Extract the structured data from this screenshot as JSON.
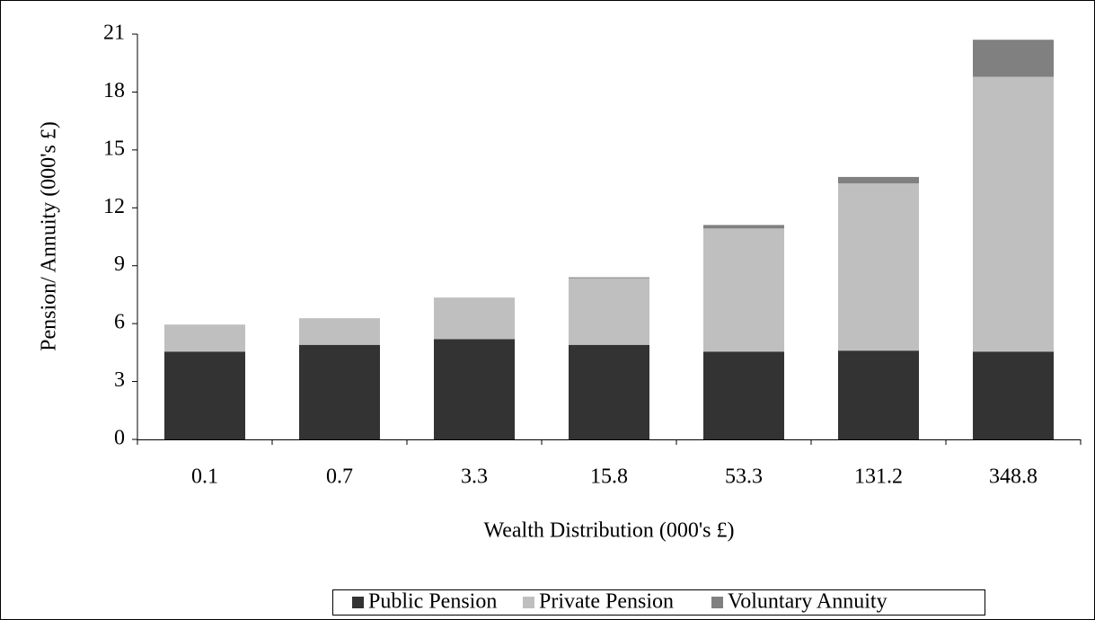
{
  "chart_data": {
    "type": "stacked_bar",
    "xlabel": "Wealth Distribution (000's £)",
    "ylabel": "Pension/ Annuity (000's £)",
    "categories": [
      "0.1",
      "0.7",
      "3.3",
      "15.8",
      "53.3",
      "131.2",
      "348.8"
    ],
    "series": [
      {
        "name": "Public Pension",
        "color": "#333333",
        "values": [
          4.55,
          4.9,
          5.2,
          4.9,
          4.55,
          4.6,
          4.55
        ]
      },
      {
        "name": "Private Pension",
        "color": "#bfbfbf",
        "values": [
          1.4,
          1.38,
          2.15,
          3.45,
          6.38,
          8.67,
          14.24
        ]
      },
      {
        "name": "Voluntary Annuity",
        "color": "#808080",
        "values": [
          0,
          0,
          0,
          0.05,
          0.18,
          0.33,
          1.92
        ]
      }
    ],
    "ylim": [
      0,
      21
    ],
    "yticks": [
      0,
      3,
      6,
      9,
      12,
      15,
      18,
      21
    ],
    "legend": "bottom"
  }
}
